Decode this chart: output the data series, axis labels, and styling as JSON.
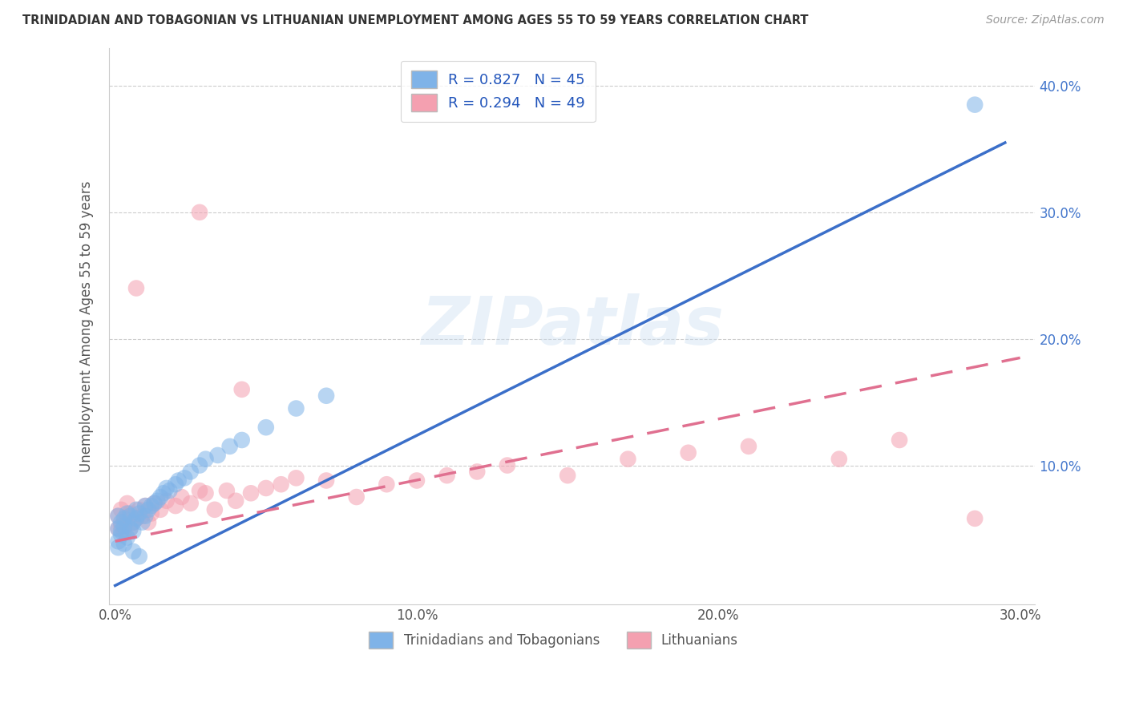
{
  "title": "TRINIDADIAN AND TOBAGONIAN VS LITHUANIAN UNEMPLOYMENT AMONG AGES 55 TO 59 YEARS CORRELATION CHART",
  "source": "Source: ZipAtlas.com",
  "ylabel": "Unemployment Among Ages 55 to 59 years",
  "xlim": [
    -0.002,
    0.305
  ],
  "ylim": [
    -0.01,
    0.43
  ],
  "blue_R": 0.827,
  "blue_N": 45,
  "pink_R": 0.294,
  "pink_N": 49,
  "blue_color": "#7FB3E8",
  "pink_color": "#F4A0B0",
  "blue_line_color": "#3B6FC9",
  "pink_line_color": "#E07090",
  "watermark": "ZIPatlas",
  "legend_blue_label": "Trinidadians and Tobagonians",
  "legend_pink_label": "Lithuanians",
  "blue_line_x": [
    0.0,
    0.295
  ],
  "blue_line_y": [
    0.005,
    0.355
  ],
  "pink_line_x": [
    0.0,
    0.3
  ],
  "pink_line_y": [
    0.04,
    0.185
  ],
  "blue_scatter_x": [
    0.001,
    0.001,
    0.001,
    0.002,
    0.002,
    0.002,
    0.003,
    0.003,
    0.004,
    0.004,
    0.005,
    0.005,
    0.006,
    0.006,
    0.007,
    0.007,
    0.008,
    0.009,
    0.01,
    0.01,
    0.011,
    0.012,
    0.013,
    0.014,
    0.015,
    0.016,
    0.017,
    0.018,
    0.02,
    0.021,
    0.023,
    0.025,
    0.028,
    0.03,
    0.034,
    0.038,
    0.042,
    0.05,
    0.06,
    0.07,
    0.001,
    0.003,
    0.006,
    0.008,
    0.285
  ],
  "blue_scatter_y": [
    0.05,
    0.04,
    0.06,
    0.045,
    0.055,
    0.048,
    0.052,
    0.058,
    0.043,
    0.062,
    0.05,
    0.06,
    0.055,
    0.048,
    0.058,
    0.065,
    0.062,
    0.055,
    0.06,
    0.068,
    0.065,
    0.068,
    0.07,
    0.072,
    0.075,
    0.078,
    0.082,
    0.08,
    0.085,
    0.088,
    0.09,
    0.095,
    0.1,
    0.105,
    0.108,
    0.115,
    0.12,
    0.13,
    0.145,
    0.155,
    0.035,
    0.038,
    0.032,
    0.028,
    0.385
  ],
  "pink_scatter_x": [
    0.001,
    0.001,
    0.002,
    0.002,
    0.003,
    0.003,
    0.004,
    0.004,
    0.005,
    0.005,
    0.006,
    0.007,
    0.008,
    0.009,
    0.01,
    0.011,
    0.012,
    0.013,
    0.015,
    0.017,
    0.02,
    0.022,
    0.025,
    0.028,
    0.03,
    0.033,
    0.037,
    0.04,
    0.045,
    0.05,
    0.055,
    0.06,
    0.07,
    0.08,
    0.09,
    0.1,
    0.11,
    0.12,
    0.13,
    0.15,
    0.17,
    0.19,
    0.21,
    0.24,
    0.26,
    0.007,
    0.028,
    0.042,
    0.285
  ],
  "pink_scatter_y": [
    0.05,
    0.06,
    0.052,
    0.065,
    0.055,
    0.048,
    0.058,
    0.07,
    0.05,
    0.062,
    0.055,
    0.058,
    0.065,
    0.06,
    0.068,
    0.055,
    0.062,
    0.07,
    0.065,
    0.072,
    0.068,
    0.075,
    0.07,
    0.08,
    0.078,
    0.065,
    0.08,
    0.072,
    0.078,
    0.082,
    0.085,
    0.09,
    0.088,
    0.075,
    0.085,
    0.088,
    0.092,
    0.095,
    0.1,
    0.092,
    0.105,
    0.11,
    0.115,
    0.105,
    0.12,
    0.24,
    0.3,
    0.16,
    0.058
  ]
}
